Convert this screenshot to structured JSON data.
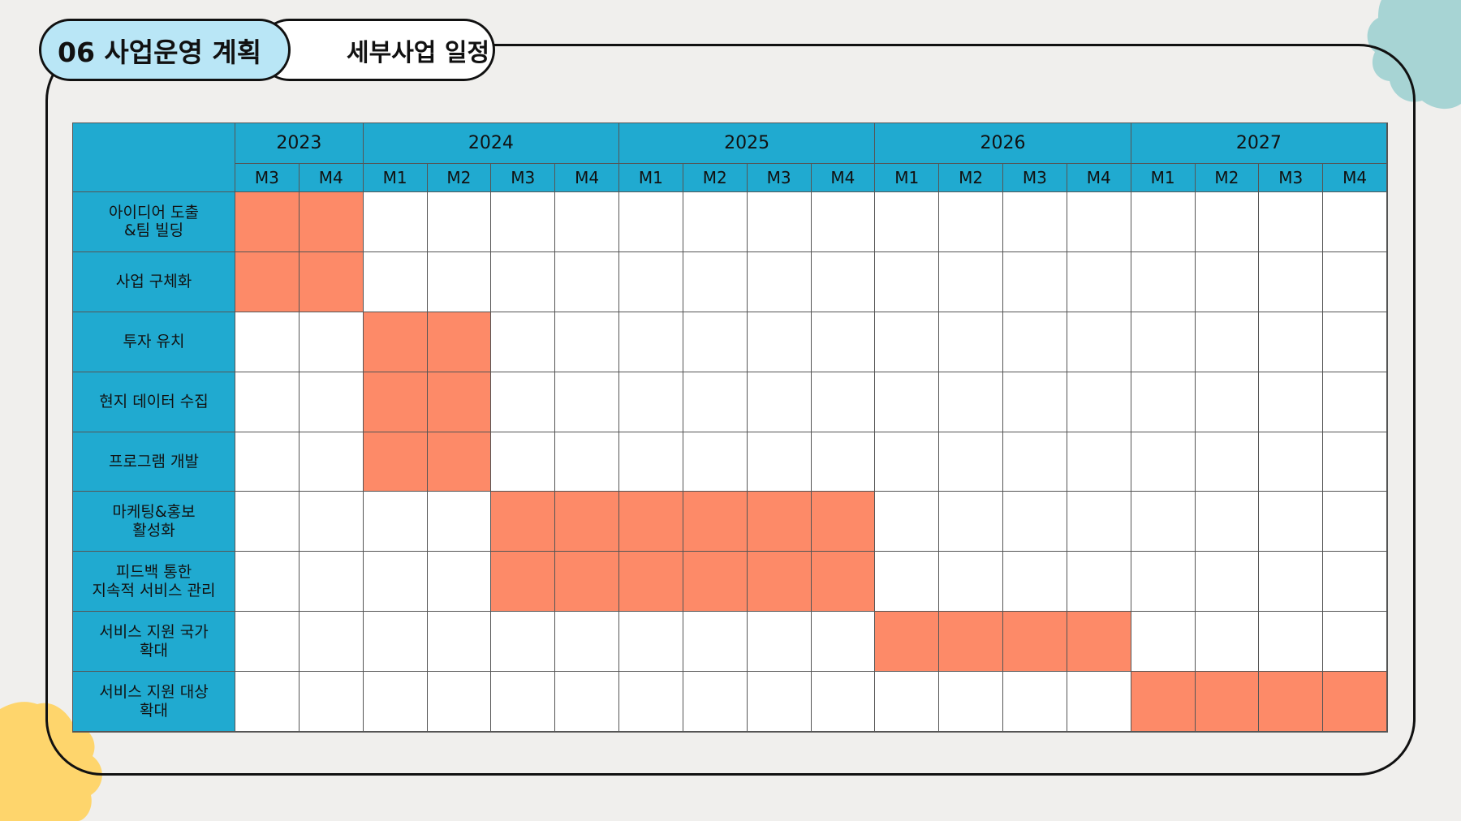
{
  "header": {
    "section_tab": "06 사업운영 계획",
    "title_tab": "세부사업 일정"
  },
  "colors": {
    "accent_blue": "#20aad0",
    "bar_orange": "#fd8a68",
    "tab_light_blue": "#b9e6f6",
    "background": "#f0efed"
  },
  "chart_data": {
    "type": "table",
    "years": [
      {
        "label": "2023",
        "months": [
          "M3",
          "M4"
        ]
      },
      {
        "label": "2024",
        "months": [
          "M1",
          "M2",
          "M3",
          "M4"
        ]
      },
      {
        "label": "2025",
        "months": [
          "M1",
          "M2",
          "M3",
          "M4"
        ]
      },
      {
        "label": "2026",
        "months": [
          "M1",
          "M2",
          "M3",
          "M4"
        ]
      },
      {
        "label": "2027",
        "months": [
          "M1",
          "M2",
          "M3",
          "M4"
        ]
      }
    ],
    "tasks": [
      {
        "name": "아이디어 도출\n&팀 빌딩",
        "start": "2023 M3",
        "end": "2023 M4"
      },
      {
        "name": "사업 구체화",
        "start": "2023 M3",
        "end": "2023 M4"
      },
      {
        "name": "투자 유치",
        "start": "2024 M1",
        "end": "2024 M2"
      },
      {
        "name": "현지 데이터 수집",
        "start": "2024 M1",
        "end": "2024 M2"
      },
      {
        "name": "프로그램 개발",
        "start": "2024 M1",
        "end": "2024 M2"
      },
      {
        "name": "마케팅&홍보\n활성화",
        "start": "2024 M3",
        "end": "2025 M4"
      },
      {
        "name": "피드백 통한\n지속적 서비스 관리",
        "start": "2024 M3",
        "end": "2025 M4"
      },
      {
        "name": "서비스 지원 국가\n확대",
        "start": "2026 M1",
        "end": "2026 M4"
      },
      {
        "name": "서비스 지원 대상\n확대",
        "start": "2027 M1",
        "end": "2027 M4"
      }
    ]
  }
}
